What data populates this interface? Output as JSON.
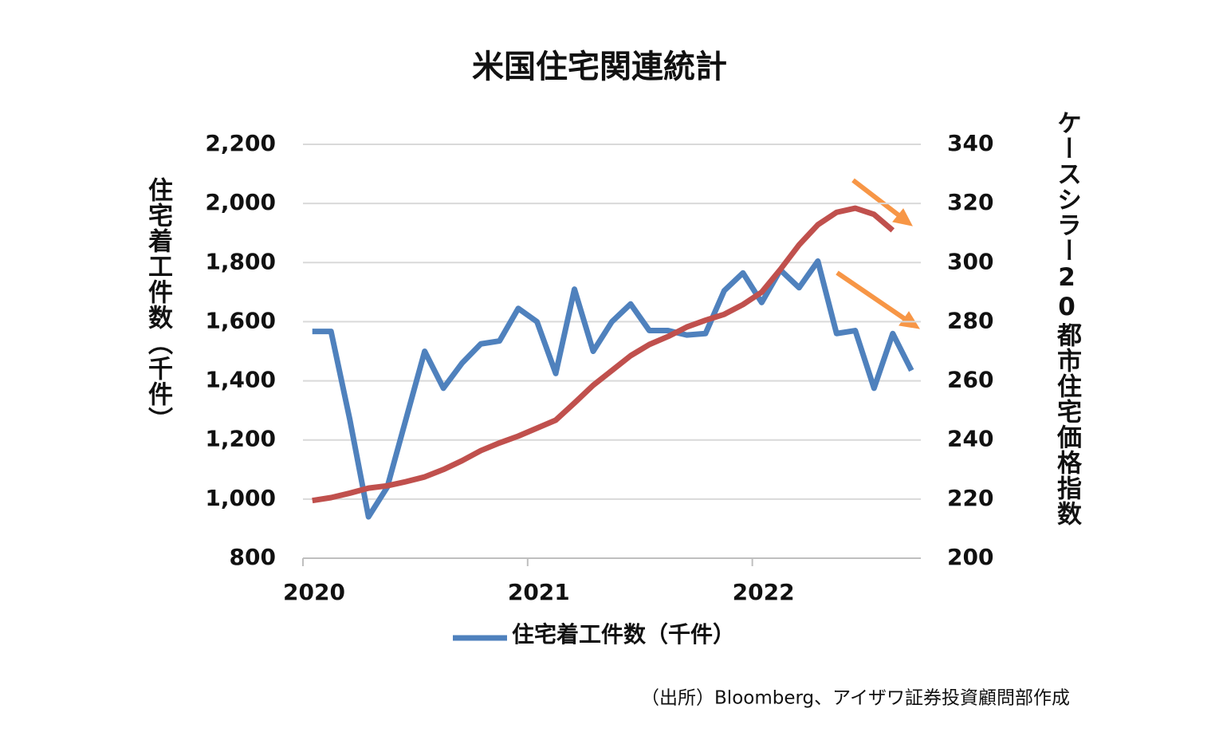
{
  "chart_data": {
    "type": "line",
    "title": "米国住宅関連統計",
    "y_label": "住宅着工件数（千件）",
    "y2_label": "ケースシラー20都市住宅価格指数",
    "source": "（出所）Bloomberg、アイザワ証券投資顧問部作成",
    "x": [
      2020.0417,
      2020.125,
      2020.2083,
      2020.2917,
      2020.375,
      2020.4583,
      2020.5417,
      2020.625,
      2020.7083,
      2020.7917,
      2020.875,
      2020.9583,
      2021.0417,
      2021.125,
      2021.2083,
      2021.2917,
      2021.375,
      2021.4583,
      2021.5417,
      2021.625,
      2021.7083,
      2021.7917,
      2021.875,
      2021.9583,
      2022.0417,
      2022.125,
      2022.2083,
      2022.2917,
      2022.375,
      2022.4583,
      2022.5417,
      2022.625,
      2022.7083
    ],
    "xlim": [
      2020,
      2022.75
    ],
    "xticks": [
      2020,
      2021,
      2022
    ],
    "ylim": [
      800,
      2200
    ],
    "yticks": [
      800,
      {
        "value": 1000,
        "label": "1,000"
      },
      {
        "value": 1200,
        "label": "1,200"
      },
      {
        "value": 1400,
        "label": "1,400"
      },
      {
        "value": 1600,
        "label": "1,600"
      },
      {
        "value": 1800,
        "label": "1,800"
      },
      {
        "value": 2000,
        "label": "2,000"
      },
      {
        "value": 2200,
        "label": "2,200"
      }
    ],
    "y2lim": [
      200,
      340
    ],
    "y2ticks": [
      200,
      220,
      240,
      260,
      280,
      300,
      320,
      340
    ],
    "grid": true,
    "series": [
      {
        "name": "住宅着工件数（千件）",
        "color": "#4f81bd",
        "values": [
          1567,
          1567,
          1270,
          940,
          1040,
          1270,
          1500,
          1375,
          1460,
          1525,
          1535,
          1645,
          1600,
          1425,
          1710,
          1500,
          1600,
          1660,
          1570,
          1570,
          1555,
          1560,
          1705,
          1765,
          1665,
          1775,
          1715,
          1805,
          1560,
          1570,
          1375,
          1560,
          1435
        ]
      },
      {
        "color": "#c0504d",
        "axis": "y2",
        "values": [
          219.5,
          220.5,
          222,
          223.7,
          224.5,
          225.9,
          227.5,
          230,
          233,
          236.4,
          239,
          241.3,
          244,
          246.7,
          252.5,
          258.5,
          263.5,
          268.5,
          272.3,
          275,
          278.2,
          280.5,
          282.5,
          285.8,
          290,
          297.7,
          306,
          312.8,
          317,
          318.4,
          316.3,
          310.9,
          null
        ]
      }
    ]
  }
}
